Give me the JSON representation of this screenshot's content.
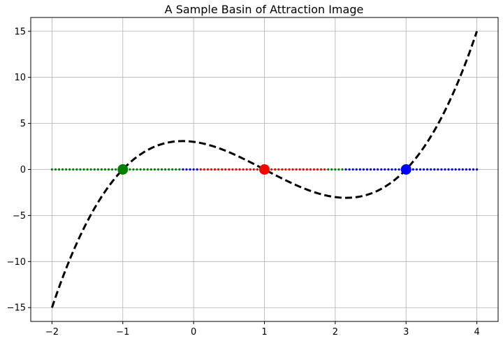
{
  "chart_data": {
    "type": "line",
    "title": "A Sample Basin of Attraction Image",
    "xlabel": "",
    "ylabel": "",
    "xlim": [
      -2.3,
      4.3
    ],
    "ylim": [
      -16.5,
      16.5
    ],
    "xticks": [
      -2,
      -1,
      0,
      1,
      2,
      3,
      4
    ],
    "yticks": [
      -15,
      -10,
      -5,
      0,
      5,
      10,
      15
    ],
    "xtick_labels": [
      "−2",
      "−1",
      "0",
      "1",
      "2",
      "3",
      "4"
    ],
    "ytick_labels": [
      "−15",
      "−10",
      "−5",
      "0",
      "5",
      "10",
      "15"
    ],
    "grid": true,
    "curve": {
      "function": "(x+1)(x-1)(x-3)",
      "x_range": [
        -2,
        4
      ],
      "color": "#000000",
      "style": "dashed"
    },
    "basin_points": {
      "y": 0,
      "x_start": -2,
      "x_end": 4,
      "count": 121,
      "segments": [
        {
          "from": -2.0,
          "to": -0.15,
          "color": "#008000"
        },
        {
          "from": -0.15,
          "to": 0.1,
          "color": "#0000ff"
        },
        {
          "from": 0.1,
          "to": 1.9,
          "color": "#ff0000"
        },
        {
          "from": 1.9,
          "to": 2.15,
          "color": "#008000"
        },
        {
          "from": 2.15,
          "to": 4.0,
          "color": "#0000ff"
        }
      ]
    },
    "roots": [
      {
        "x": -1,
        "y": 0,
        "color": "#008000"
      },
      {
        "x": 1,
        "y": 0,
        "color": "#ff0000"
      },
      {
        "x": 3,
        "y": 0,
        "color": "#0000ff"
      }
    ]
  }
}
